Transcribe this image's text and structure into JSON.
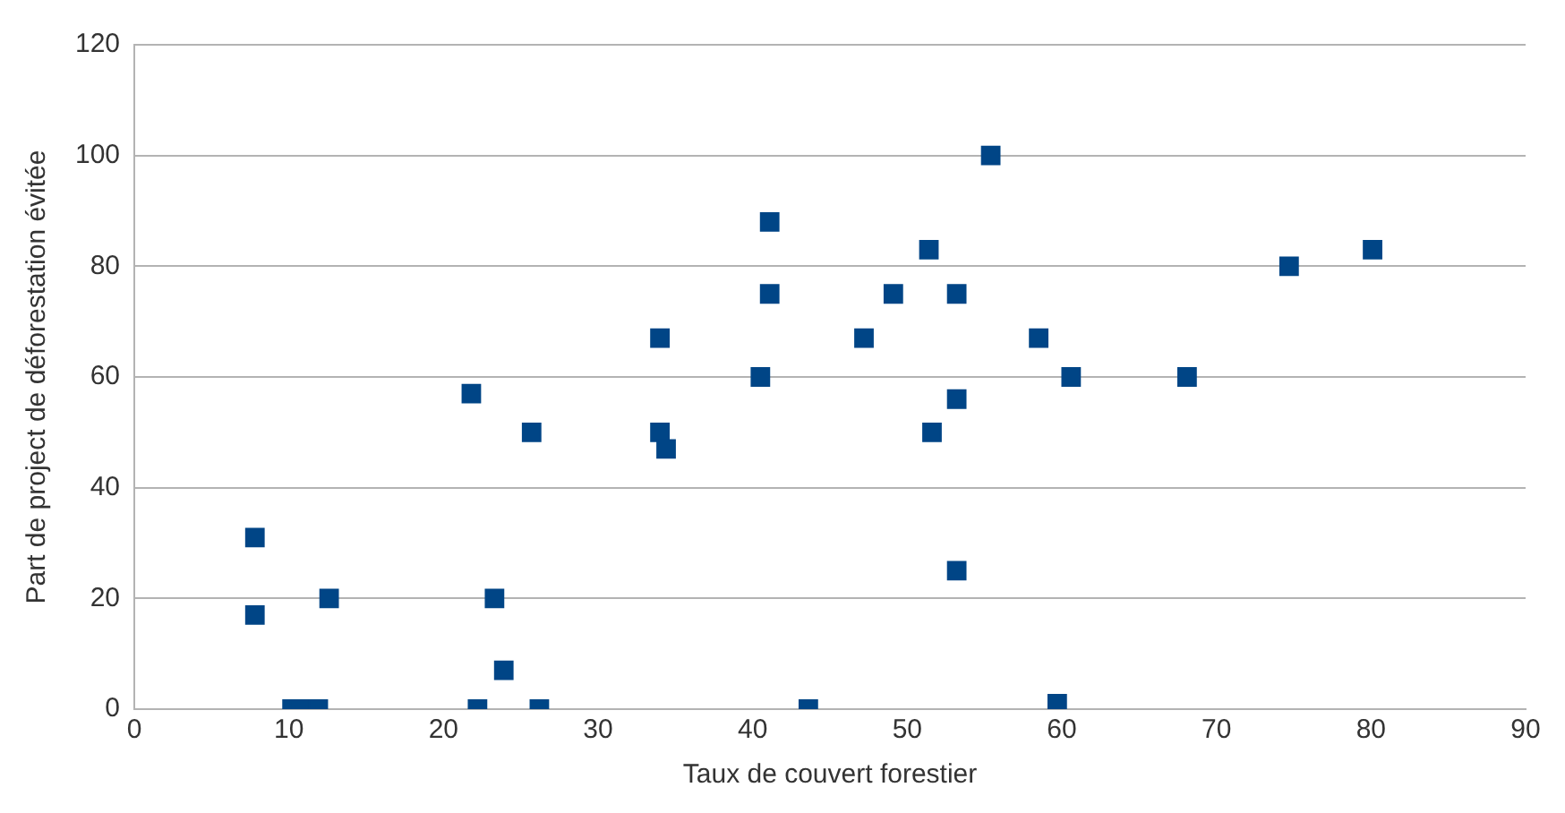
{
  "chart_data": {
    "type": "scatter",
    "xlabel": "Taux de couvert forestier",
    "ylabel": "Part de project de déforestation évitée",
    "x": [
      7.8,
      7.8,
      10.2,
      10.7,
      11.9,
      12.6,
      21.8,
      22.2,
      23.3,
      23.9,
      25.7,
      26.2,
      34,
      34,
      34.4,
      40.5,
      41.1,
      41.1,
      43.6,
      47.2,
      49.1,
      51.4,
      51.6,
      53.2,
      53.2,
      53.2,
      55.4,
      58.5,
      59.7,
      60.6,
      68.1,
      74.7,
      80.1
    ],
    "series": [
      {
        "color": "#004586",
        "values": [
          31,
          17,
          0,
          0,
          0,
          20,
          57,
          0,
          20,
          7,
          50,
          0,
          67,
          50,
          47,
          60,
          88,
          75,
          0,
          67,
          75,
          83,
          50,
          75,
          56,
          25,
          100,
          67,
          1,
          60,
          60,
          80,
          83
        ]
      }
    ],
    "xlim": [
      0,
      90
    ],
    "xticks": [
      0,
      10,
      20,
      30,
      40,
      50,
      60,
      70,
      80,
      90
    ],
    "ylim": [
      0,
      120
    ],
    "yticks": [
      0,
      20,
      40,
      60,
      80,
      100,
      120
    ],
    "grid": "y",
    "legend": false,
    "marker": "square"
  }
}
